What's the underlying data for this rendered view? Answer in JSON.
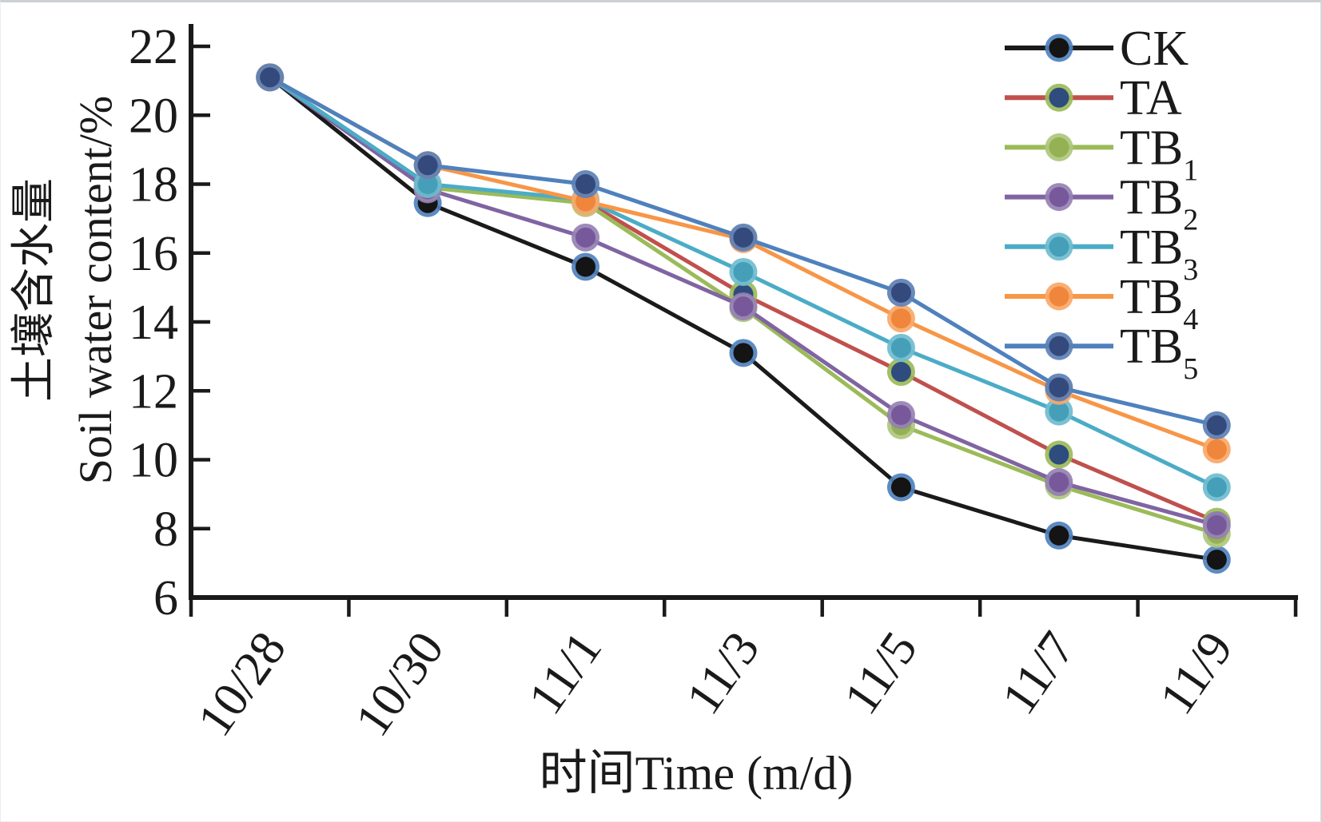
{
  "figure": {
    "frame_color": "#ccd0d4",
    "text_color": "#1a1a1a",
    "axis_color": "#1a1a1a"
  },
  "chart_data": {
    "type": "line",
    "title": "",
    "xlabel": "时间Time (m/d)",
    "ylabel_zh": "土壤含水量",
    "ylabel_en": "Soil water content/%",
    "x": [
      "10/28",
      "10/30",
      "11/1",
      "11/3",
      "11/5",
      "11/7",
      "11/9"
    ],
    "ylim": [
      6,
      22
    ],
    "ytick_step": 2,
    "yticks": [
      6,
      8,
      10,
      12,
      14,
      16,
      18,
      20,
      22
    ],
    "grid": false,
    "legend_position": "top-right",
    "series": [
      {
        "name": "CK",
        "label": "CK",
        "sub": "",
        "line_color": "#1a1a1a",
        "marker_color": "#141414",
        "marker_ring": "#4f81bd",
        "values": [
          21.1,
          17.45,
          15.6,
          13.1,
          9.2,
          7.8,
          7.1
        ]
      },
      {
        "name": "TA",
        "label": "TA",
        "sub": "",
        "line_color": "#c0504d",
        "marker_color": "#2f4c7e",
        "marker_ring": "#9bbb59",
        "values": [
          21.1,
          17.9,
          17.5,
          14.8,
          12.55,
          10.15,
          8.2
        ]
      },
      {
        "name": "TB1",
        "label": "TB",
        "sub": "1",
        "line_color": "#9bbb59",
        "marker_color": "#94b153",
        "marker_ring": "#aec77d",
        "values": [
          21.1,
          17.9,
          17.45,
          14.4,
          11.0,
          9.25,
          7.85
        ]
      },
      {
        "name": "TB2",
        "label": "TB",
        "sub": "2",
        "line_color": "#8064a2",
        "marker_color": "#77599b",
        "marker_ring": "#9681b3",
        "values": [
          21.1,
          17.85,
          16.45,
          14.45,
          11.3,
          9.35,
          8.1
        ]
      },
      {
        "name": "TB3",
        "label": "TB",
        "sub": "3",
        "line_color": "#4bacc6",
        "marker_color": "#459fb8",
        "marker_ring": "#6fbccf",
        "values": [
          21.1,
          18.0,
          17.55,
          15.45,
          13.25,
          11.4,
          9.2
        ]
      },
      {
        "name": "TB4",
        "label": "TB",
        "sub": "4",
        "line_color": "#f79646",
        "marker_color": "#ef863c",
        "marker_ring": "#f8a868",
        "values": [
          21.1,
          18.55,
          17.5,
          16.4,
          14.1,
          12.0,
          10.3
        ]
      },
      {
        "name": "TB5",
        "label": "TB",
        "sub": "5",
        "line_color": "#4f81bd",
        "marker_color": "#34497c",
        "marker_ring": "#5c80b5",
        "values": [
          21.1,
          18.55,
          18.0,
          16.45,
          14.85,
          12.1,
          11.0
        ]
      }
    ]
  }
}
